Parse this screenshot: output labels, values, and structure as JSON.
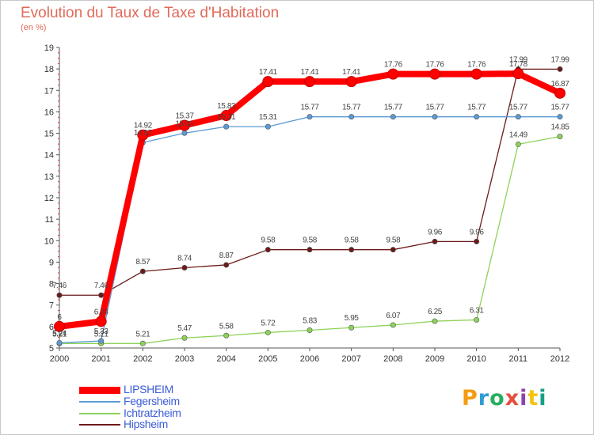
{
  "header": {
    "title": "Evolution du Taux de Taxe d'Habitation",
    "unit": "(en %)"
  },
  "brand": {
    "name": "Proxiti",
    "colors": [
      "#f39c12",
      "#2e9bd6",
      "#27ae60",
      "#e74c3c",
      "#8e44ad",
      "#f1c40f",
      "#16a085"
    ]
  },
  "chart_data": {
    "type": "line",
    "x": [
      "2000",
      "2001",
      "2002",
      "2003",
      "2004",
      "2005",
      "2006",
      "2007",
      "2008",
      "2009",
      "2010",
      "2011",
      "2012"
    ],
    "ylim": [
      5,
      19
    ],
    "yticks": [
      5,
      6,
      7,
      8,
      9,
      10,
      11,
      12,
      13,
      14,
      15,
      16,
      17,
      18,
      19
    ],
    "grid": false,
    "legend_position": "bottom-left",
    "series": [
      {
        "name": "LIPSHEIM",
        "color": "#ff0000",
        "values": [
          6,
          6.24,
          14.92,
          15.37,
          15.83,
          17.41,
          17.41,
          17.41,
          17.76,
          17.76,
          17.76,
          17.78,
          16.87
        ],
        "labels": [
          "6",
          "6.24",
          "14.92",
          "15.37",
          "15.83",
          "17.41",
          "17.41",
          "17.41",
          "17.76",
          "17.76",
          "17.76",
          "17.78",
          "16.87"
        ]
      },
      {
        "name": "Fegersheim",
        "color": "#5b9bd5",
        "values": [
          5.24,
          5.33,
          14.57,
          15.01,
          15.31,
          15.31,
          15.77,
          15.77,
          15.77,
          15.77,
          15.77,
          15.77,
          15.77
        ],
        "labels": [
          "5.24",
          "5.33",
          "14.57",
          "15.01",
          "15.31",
          "15.31",
          "15.77",
          "15.77",
          "15.77",
          "15.77",
          "15.77",
          "15.77",
          "15.77"
        ]
      },
      {
        "name": "Ichtratzheim",
        "color": "#8ed25a",
        "values": [
          5.21,
          5.21,
          5.21,
          5.47,
          5.58,
          5.72,
          5.83,
          5.95,
          6.07,
          6.25,
          6.31,
          14.49,
          14.85
        ],
        "labels": [
          "5.21",
          "5.21",
          "5.21",
          "5.47",
          "5.58",
          "5.72",
          "5.83",
          "5.95",
          "6.07",
          "6.25",
          "6.31",
          "14.49",
          "14.85"
        ]
      },
      {
        "name": "Hipsheim",
        "color": "#6b1a1a",
        "values": [
          7.46,
          7.46,
          8.57,
          8.74,
          8.87,
          9.58,
          9.58,
          9.58,
          9.58,
          9.96,
          9.96,
          17.99,
          17.99
        ],
        "labels": [
          "7.46",
          "7.46",
          "8.57",
          "8.74",
          "8.87",
          "9.58",
          "9.58",
          "9.58",
          "9.58",
          "9.96",
          "9.96",
          "17.99",
          "17.99"
        ]
      }
    ]
  }
}
